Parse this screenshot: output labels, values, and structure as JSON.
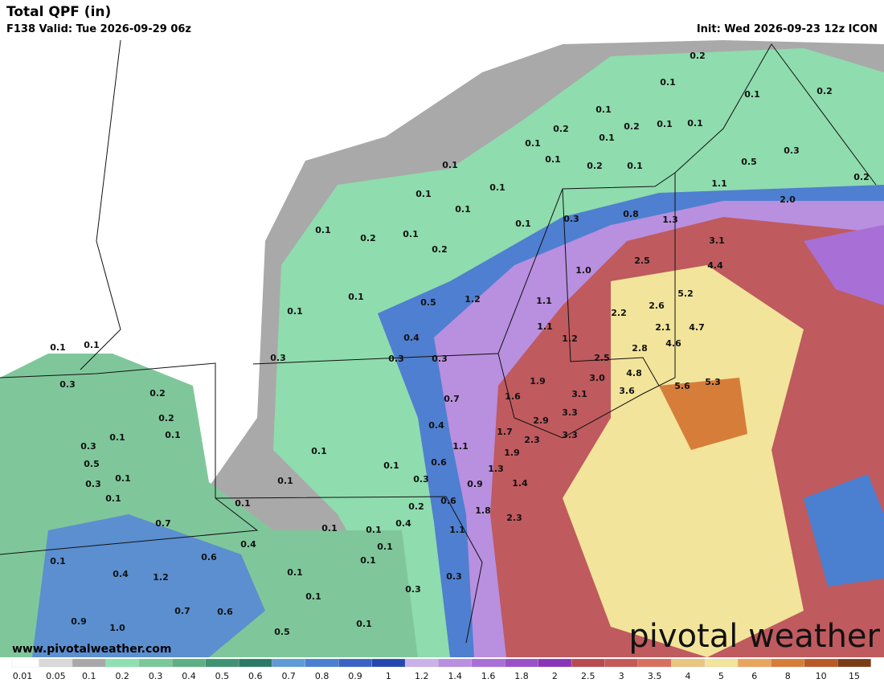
{
  "header": {
    "title": "Total QPF (in)",
    "valid": "F138 Valid: Tue 2026-09-29 06z",
    "init": "Init: Wed 2026-09-23 12z ICON"
  },
  "footer": {
    "website": "www.pivotalweather.com",
    "logo": "pivotal weather"
  },
  "colorbar": {
    "labels": [
      "0.01",
      "0.05",
      "0.1",
      "0.2",
      "0.3",
      "0.4",
      "0.5",
      "0.6",
      "0.7",
      "0.8",
      "0.9",
      "1",
      "1.2",
      "1.4",
      "1.6",
      "1.8",
      "2",
      "2.5",
      "3",
      "3.5",
      "4",
      "5",
      "6",
      "8",
      "10",
      "15"
    ],
    "colors": [
      "#ffffff",
      "#d9d9d9",
      "#a8a8a8",
      "#8fe0b0",
      "#79c89a",
      "#5faf84",
      "#3f9272",
      "#2a7a66",
      "#5e9bd6",
      "#4b7fcf",
      "#3a64c4",
      "#2448b0",
      "#c9b2e8",
      "#b98fdf",
      "#a86fd6",
      "#9a50c8",
      "#8a35b8",
      "#b84a52",
      "#c25a58",
      "#d67060",
      "#e8c680",
      "#f2e49a",
      "#e8a55e",
      "#d77d3a",
      "#b85a28",
      "#7a3d18"
    ]
  },
  "map_labels": [
    "0.2",
    "0.1",
    "0.1",
    "0.2",
    "0.1",
    "0.2",
    "0.2",
    "0.1",
    "0.1",
    "0.1",
    "0.1",
    "0.3",
    "0.1",
    "0.1",
    "0.2",
    "0.1",
    "0.5",
    "0.2",
    "1.1",
    "0.1",
    "0.1",
    "2.0",
    "0.1",
    "0.3",
    "0.8",
    "1.3",
    "0.1",
    "0.1",
    "0.2",
    "0.1",
    "0.2",
    "3.1",
    "2.5",
    "4.4",
    "1.0",
    "5.2",
    "0.1",
    "0.1",
    "0.5",
    "1.2",
    "1.1",
    "2.6",
    "2.2",
    "1.1",
    "2.1",
    "4.7",
    "0.4",
    "1.2",
    "2.8",
    "4.6",
    "0.1",
    "0.1",
    "0.3",
    "0.3",
    "0.3",
    "2.5",
    "4.8",
    "3.0",
    "0.3",
    "5.6",
    "5.3",
    "1.9",
    "0.2",
    "3.1",
    "3.6",
    "0.7",
    "1.6",
    "0.2",
    "3.3",
    "0.4",
    "2.9",
    "0.1",
    "0.1",
    "1.7",
    "3.3",
    "0.3",
    "1.1",
    "2.3",
    "0.1",
    "1.9",
    "0.5",
    "0.6",
    "0.1",
    "1.3",
    "0.1",
    "0.3",
    "0.1",
    "0.3",
    "0.9",
    "1.4",
    "0.1",
    "0.1",
    "0.2",
    "0.6",
    "1.8",
    "0.7",
    "0.4",
    "2.3",
    "0.1",
    "0.1",
    "1.1",
    "0.1",
    "0.4",
    "0.6",
    "0.1",
    "0.1",
    "0.1",
    "0.4",
    "1.2",
    "0.3",
    "0.3",
    "0.1",
    "0.7",
    "0.6",
    "0.9",
    "1.0",
    "0.1",
    "0.5"
  ]
}
